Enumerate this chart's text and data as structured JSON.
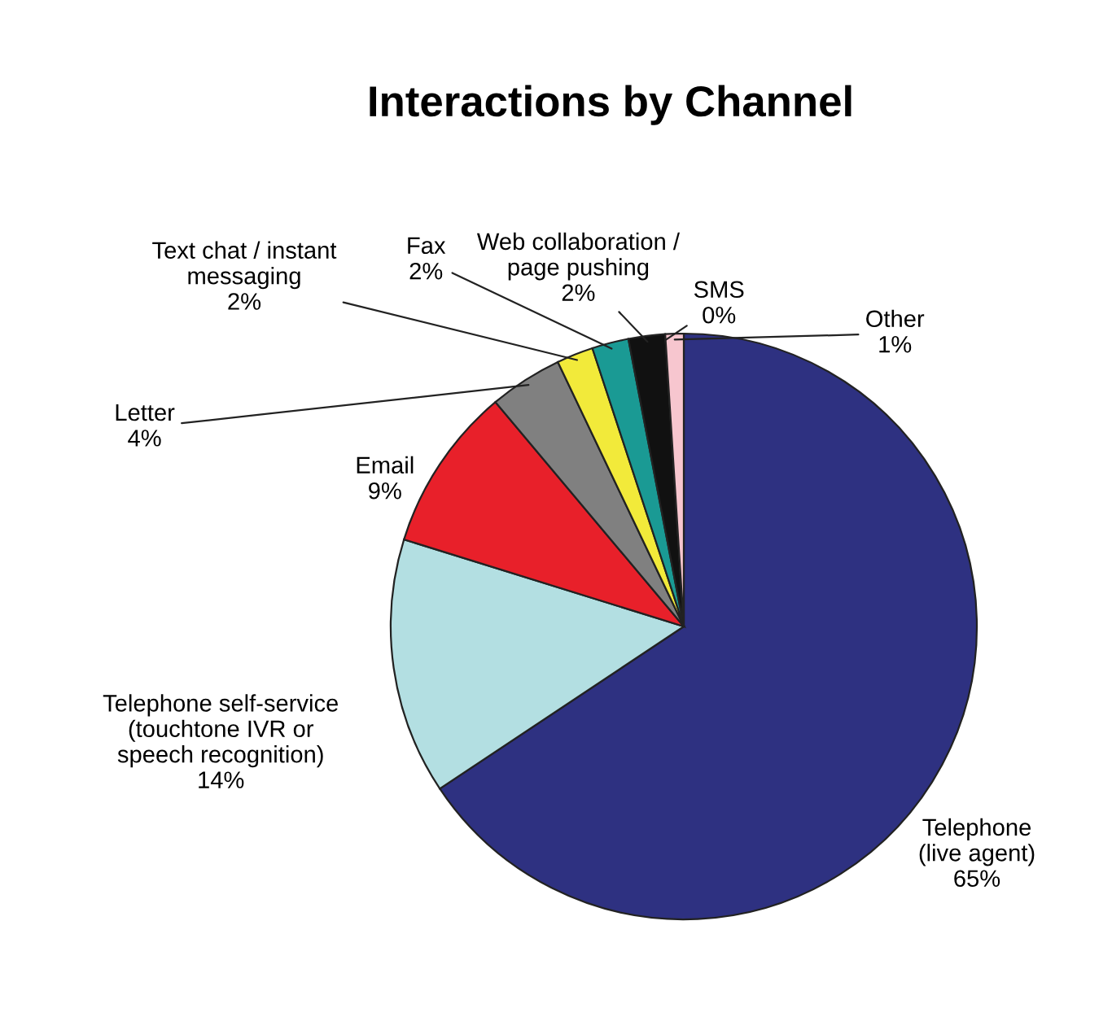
{
  "chart_data": {
    "type": "pie",
    "title": "Interactions by Channel",
    "categories": [
      "Telephone\n(live agent)",
      "Telephone self-service\n(touchtone IVR or\nspeech recognition)",
      "Email",
      "Letter",
      "Text chat / instant\nmessaging",
      "Fax",
      "Web collaboration /\npage pushing",
      "SMS",
      "Other"
    ],
    "values": [
      65,
      14,
      9,
      4,
      2,
      2,
      2,
      0,
      1
    ],
    "value_labels": [
      "65%",
      "14%",
      "9%",
      "4%",
      "2%",
      "2%",
      "2%",
      "0%",
      "1%"
    ],
    "colors": [
      "#2e3181",
      "#b3dfe2",
      "#e8202a",
      "#808080",
      "#f2ea3a",
      "#1a9a94",
      "#111111",
      "#ffffff",
      "#f7c6cf"
    ]
  }
}
